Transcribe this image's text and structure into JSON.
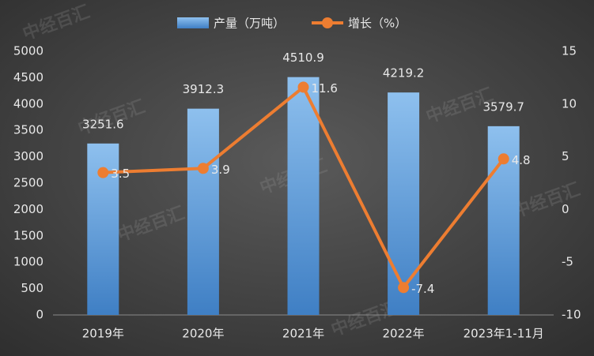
{
  "chart_data": {
    "type": "bar",
    "watermark": "中经百汇",
    "categories": [
      "2019年",
      "2020年",
      "2021年",
      "2022年",
      "2023年1-11月"
    ],
    "series": [
      {
        "name": "产量（万吨）",
        "color": "#5b9bd5",
        "values": [
          3251.6,
          3912.3,
          4510.9,
          4219.2,
          3579.7
        ]
      },
      {
        "name": "增长（%）",
        "color": "#ed7d31",
        "type": "line",
        "axis": "y2",
        "values": [
          3.5,
          3.9,
          11.6,
          -7.4,
          4.8
        ]
      }
    ],
    "ylim": [
      0,
      5000
    ],
    "yticks": [
      0,
      500,
      1000,
      1500,
      2000,
      2500,
      3000,
      3500,
      4000,
      4500,
      5000
    ],
    "y2lim": [
      -10,
      15
    ],
    "y2ticks": [
      -10,
      -5,
      0,
      5,
      10,
      15
    ],
    "legend": "top"
  }
}
